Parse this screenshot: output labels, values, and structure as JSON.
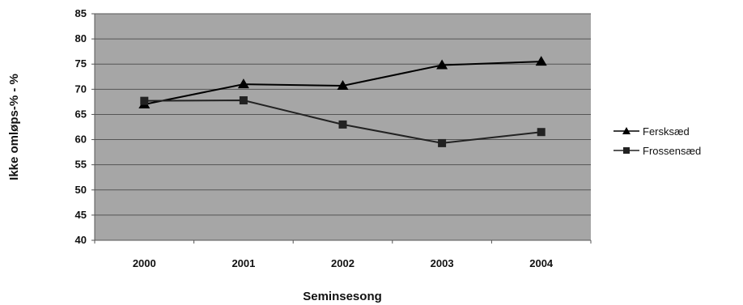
{
  "chart_data": {
    "type": "line",
    "title": "",
    "xlabel": "Seminsesong",
    "ylabel": "Ikke omløps-% - %",
    "categories": [
      "2000",
      "2001",
      "2002",
      "2003",
      "2004"
    ],
    "ylim": [
      40,
      85
    ],
    "yticks": [
      "40",
      "45",
      "50",
      "55",
      "60",
      "65",
      "70",
      "75",
      "80",
      "85"
    ],
    "grid": true,
    "legend_position": "right",
    "plot_background": "#a6a6a6",
    "series": [
      {
        "name": "Fersksæd",
        "marker": "triangle",
        "color": "#000000",
        "values": [
          67,
          71,
          70.7,
          74.8,
          75.5
        ]
      },
      {
        "name": "Frossensæd",
        "marker": "square",
        "color": "#222222",
        "values": [
          67.7,
          67.8,
          63,
          59.3,
          61.5
        ]
      }
    ]
  }
}
